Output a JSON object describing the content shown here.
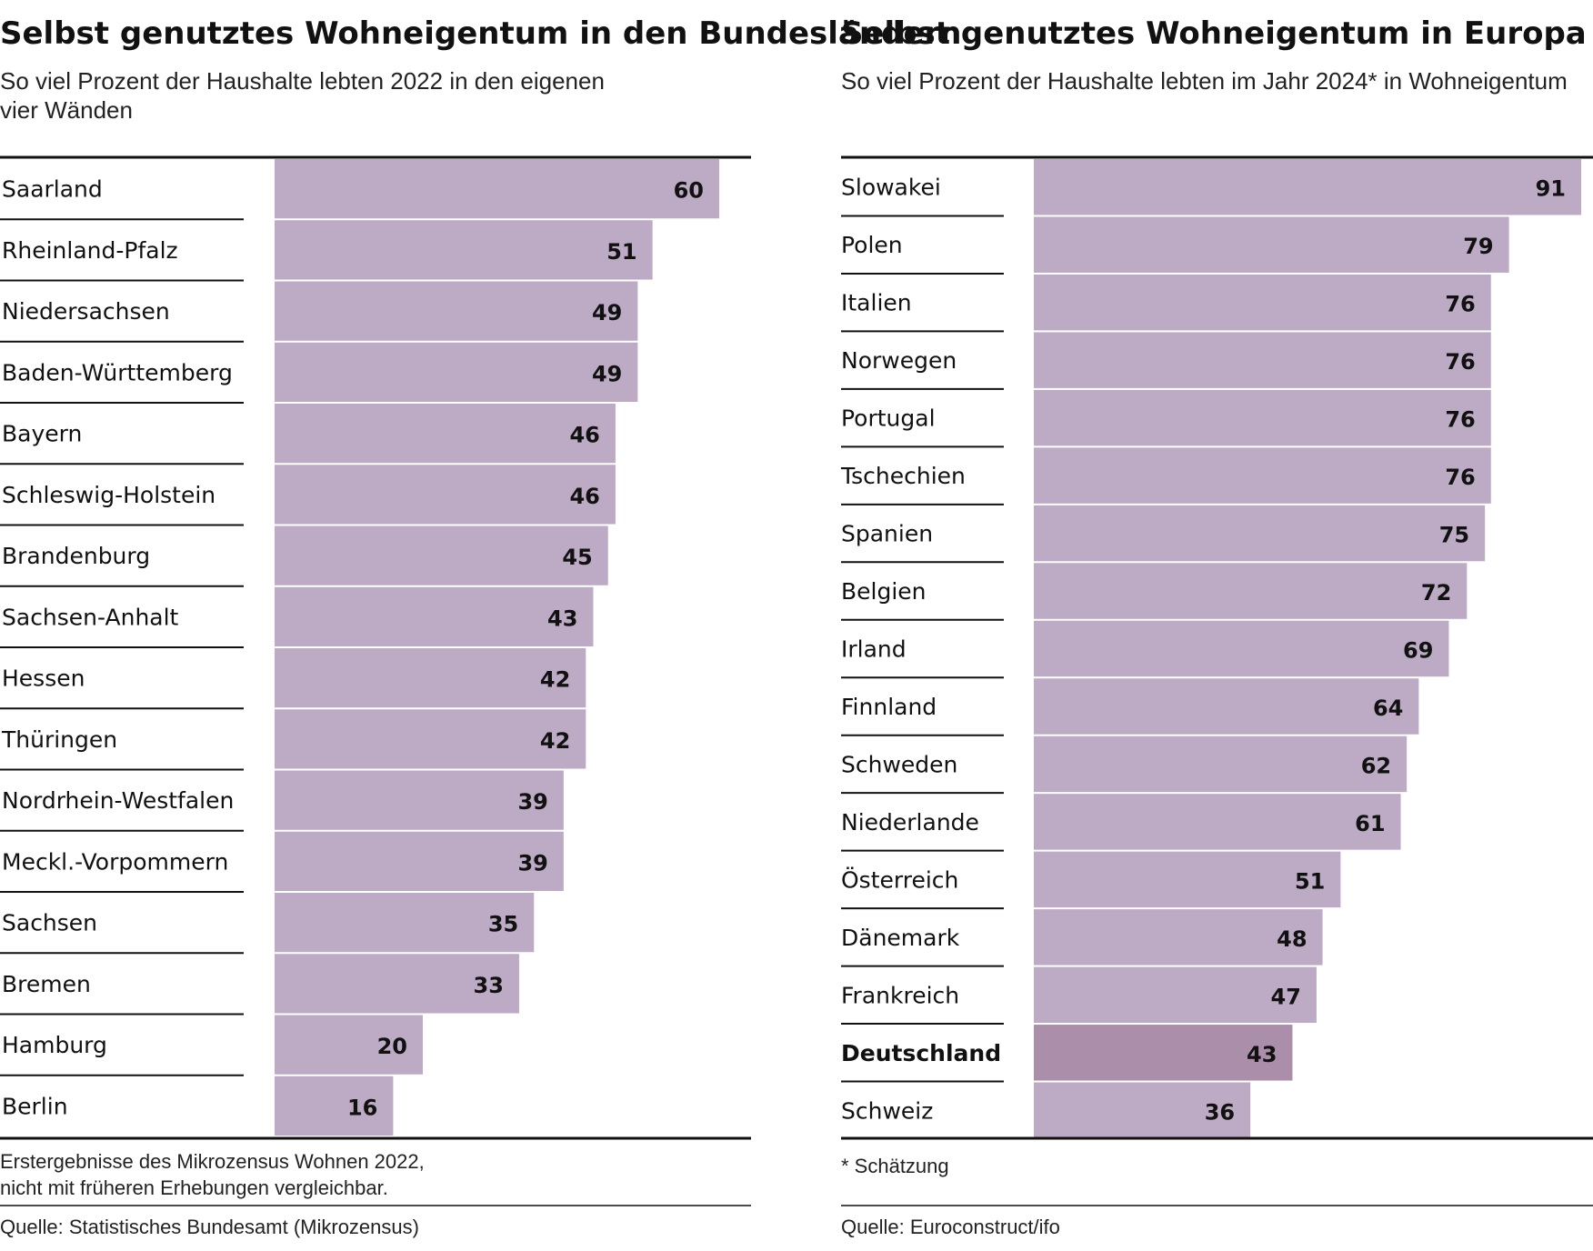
{
  "colors": {
    "bar": "#bdaac4",
    "bar_highlight": "#ab8ea9",
    "rule": "#111111",
    "text": "#111111"
  },
  "chart_data": [
    {
      "type": "bar",
      "orientation": "horizontal",
      "title": "Selbst genutztes Wohneigentum in den Bundesländern",
      "subtitle_lines": [
        "So viel Prozent der Haushalte lebten 2022 in den eigenen",
        "vier Wänden"
      ],
      "categories": [
        "Saarland",
        "Rheinland-Pfalz",
        "Niedersachsen",
        "Baden-Württemberg",
        "Bayern",
        "Schleswig-Holstein",
        "Brandenburg",
        "Sachsen-Anhalt",
        "Hessen",
        "Thüringen",
        "Nordrhein-Westfalen",
        "Meckl.-Vorpommern",
        "Sachsen",
        "Bremen",
        "Hamburg",
        "Berlin"
      ],
      "values": [
        60,
        51,
        49,
        49,
        46,
        46,
        45,
        43,
        42,
        42,
        39,
        39,
        35,
        33,
        20,
        16
      ],
      "highlight": [],
      "unit": "%",
      "xlim": [
        0,
        60
      ],
      "notes": [
        "Erstergebnisse des Mikrozensus Wohnen 2022,",
        "nicht mit früheren Erhebungen vergleichbar."
      ],
      "source": "Quelle: Statistisches Bundesamt (Mikrozensus)"
    },
    {
      "type": "bar",
      "orientation": "horizontal",
      "title": "Selbst genutztes Wohneigentum in Europa",
      "subtitle_lines": [
        "So viel Prozent der Haushalte lebten im Jahr 2024* in Wohneigentum"
      ],
      "categories": [
        "Slowakei",
        "Polen",
        "Italien",
        "Norwegen",
        "Portugal",
        "Tschechien",
        "Spanien",
        "Belgien",
        "Irland",
        "Finnland",
        "Schweden",
        "Niederlande",
        "Österreich",
        "Dänemark",
        "Frankreich",
        "Deutschland",
        "Schweiz"
      ],
      "values": [
        91,
        79,
        76,
        76,
        76,
        76,
        75,
        72,
        69,
        64,
        62,
        61,
        51,
        48,
        47,
        43,
        36
      ],
      "highlight": [
        "Deutschland"
      ],
      "unit": "%",
      "xlim": [
        0,
        91
      ],
      "notes": [
        "* Schätzung"
      ],
      "source": "Quelle: Euroconstruct/ifo"
    }
  ]
}
